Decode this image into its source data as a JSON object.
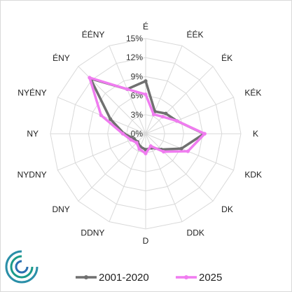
{
  "chart_data": {
    "type": "radar",
    "categories": [
      "É",
      "ÉÉK",
      "ÉK",
      "KÉK",
      "K",
      "KDK",
      "DK",
      "DDK",
      "D",
      "DDNY",
      "DNY",
      "NYDNY",
      "NY",
      "NYÉNY",
      "ÉNY",
      "ÉÉNY"
    ],
    "radial_ticks": [
      "0%",
      "3%",
      "6%",
      "9%",
      "12%",
      "15%"
    ],
    "rlim": [
      0,
      15
    ],
    "grid": true,
    "legend_position": "bottom",
    "series": [
      {
        "name": "2001-2020",
        "color": "#707070",
        "values": [
          8.3,
          3.8,
          4.5,
          5.3,
          9.2,
          6.1,
          3.5,
          2.4,
          2.5,
          2.2,
          1.8,
          2.0,
          3.4,
          6.0,
          12.3,
          7.6
        ]
      },
      {
        "name": "2025",
        "color": "#f07cf0",
        "values": [
          6.2,
          3.3,
          3.8,
          5.3,
          9.3,
          7.2,
          4.0,
          2.1,
          3.1,
          2.6,
          2.0,
          2.5,
          3.6,
          7.6,
          12.5,
          7.6
        ]
      }
    ]
  },
  "branding": {
    "logo_colors": [
      "#1a9a8a",
      "#2a6fb0"
    ]
  }
}
